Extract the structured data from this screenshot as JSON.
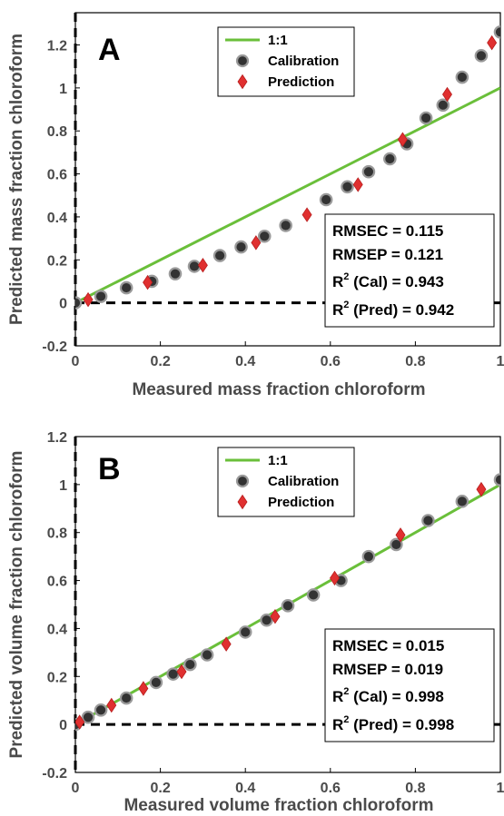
{
  "chart_data": [
    {
      "panel": "A",
      "type": "scatter",
      "xlabel": "Measured mass fraction chloroform",
      "ylabel": "Predicted mass fraction chloroform",
      "xlim": [
        0,
        1
      ],
      "ylim": [
        -0.2,
        1.35
      ],
      "xticks": [
        "0",
        "0.2",
        "0.4",
        "0.6",
        "0.8",
        "1"
      ],
      "yticks": [
        "-0.2",
        "0",
        "0.2",
        "0.4",
        "0.6",
        "0.8",
        "1",
        "1.2"
      ],
      "xtick_values": [
        0,
        0.2,
        0.4,
        0.6,
        0.8,
        1
      ],
      "ytick_values": [
        -0.2,
        0,
        0.2,
        0.4,
        0.6,
        0.8,
        1,
        1.2
      ],
      "legend": [
        "1:1",
        "Calibration",
        "Prediction"
      ],
      "legend_position": "top-right",
      "stats": [
        "RMSEC = 0.115",
        "RMSEP = 0.121",
        "(Cal) = 0.943",
        "(Pred) = 0.942"
      ],
      "stats_prefix": "R",
      "stats_sup": "2",
      "series": [
        {
          "name": "1:1",
          "kind": "line",
          "x": [
            0,
            1
          ],
          "y": [
            0,
            1
          ],
          "color": "#6abf3a"
        },
        {
          "name": "Calibration",
          "kind": "circle",
          "color": "#3a3a3a",
          "x": [
            0.0,
            0.06,
            0.12,
            0.18,
            0.235,
            0.28,
            0.34,
            0.39,
            0.445,
            0.495,
            0.59,
            0.64,
            0.69,
            0.74,
            0.78,
            0.825,
            0.865,
            0.91,
            0.955,
            1.0
          ],
          "y": [
            0.0,
            0.03,
            0.07,
            0.1,
            0.135,
            0.17,
            0.22,
            0.26,
            0.31,
            0.36,
            0.48,
            0.54,
            0.61,
            0.67,
            0.74,
            0.86,
            0.92,
            1.05,
            1.15,
            1.26
          ]
        },
        {
          "name": "Prediction",
          "kind": "diamond",
          "color": "#e03030",
          "x": [
            0.03,
            0.17,
            0.3,
            0.425,
            0.545,
            0.665,
            0.77,
            0.875,
            0.98
          ],
          "y": [
            0.015,
            0.095,
            0.175,
            0.28,
            0.41,
            0.55,
            0.76,
            0.97,
            1.21
          ]
        }
      ]
    },
    {
      "panel": "B",
      "type": "scatter",
      "xlabel": "Measured volume fraction chloroform",
      "ylabel": "Predicted volume fraction chloroform",
      "xlim": [
        0,
        1
      ],
      "ylim": [
        -0.2,
        1.2
      ],
      "xticks": [
        "0",
        "0.2",
        "0.4",
        "0.6",
        "0.8",
        "1"
      ],
      "yticks": [
        "-0.2",
        "0",
        "0.2",
        "0.4",
        "0.6",
        "0.8",
        "1",
        "1.2"
      ],
      "xtick_values": [
        0,
        0.2,
        0.4,
        0.6,
        0.8,
        1
      ],
      "ytick_values": [
        -0.2,
        0,
        0.2,
        0.4,
        0.6,
        0.8,
        1,
        1.2
      ],
      "legend": [
        "1:1",
        "Calibration",
        "Prediction"
      ],
      "legend_position": "top-right",
      "stats": [
        "RMSEC = 0.015",
        "RMSEP = 0.019",
        "(Cal) = 0.998",
        "(Pred) = 0.998"
      ],
      "stats_prefix": "R",
      "stats_sup": "2",
      "series": [
        {
          "name": "1:1",
          "kind": "line",
          "x": [
            0,
            1
          ],
          "y": [
            0,
            1
          ],
          "color": "#6abf3a"
        },
        {
          "name": "Calibration",
          "kind": "circle",
          "color": "#3a3a3a",
          "x": [
            0.0,
            0.03,
            0.06,
            0.12,
            0.19,
            0.23,
            0.27,
            0.31,
            0.4,
            0.45,
            0.5,
            0.56,
            0.625,
            0.69,
            0.755,
            0.83,
            0.91,
            1.0
          ],
          "y": [
            0.0,
            0.03,
            0.06,
            0.11,
            0.175,
            0.21,
            0.25,
            0.29,
            0.385,
            0.435,
            0.495,
            0.54,
            0.6,
            0.7,
            0.75,
            0.85,
            0.93,
            1.02
          ]
        },
        {
          "name": "Prediction",
          "kind": "diamond",
          "color": "#e03030",
          "x": [
            0.01,
            0.085,
            0.16,
            0.25,
            0.355,
            0.47,
            0.61,
            0.765,
            0.955
          ],
          "y": [
            0.01,
            0.08,
            0.15,
            0.22,
            0.335,
            0.45,
            0.61,
            0.79,
            0.98
          ]
        }
      ]
    }
  ]
}
